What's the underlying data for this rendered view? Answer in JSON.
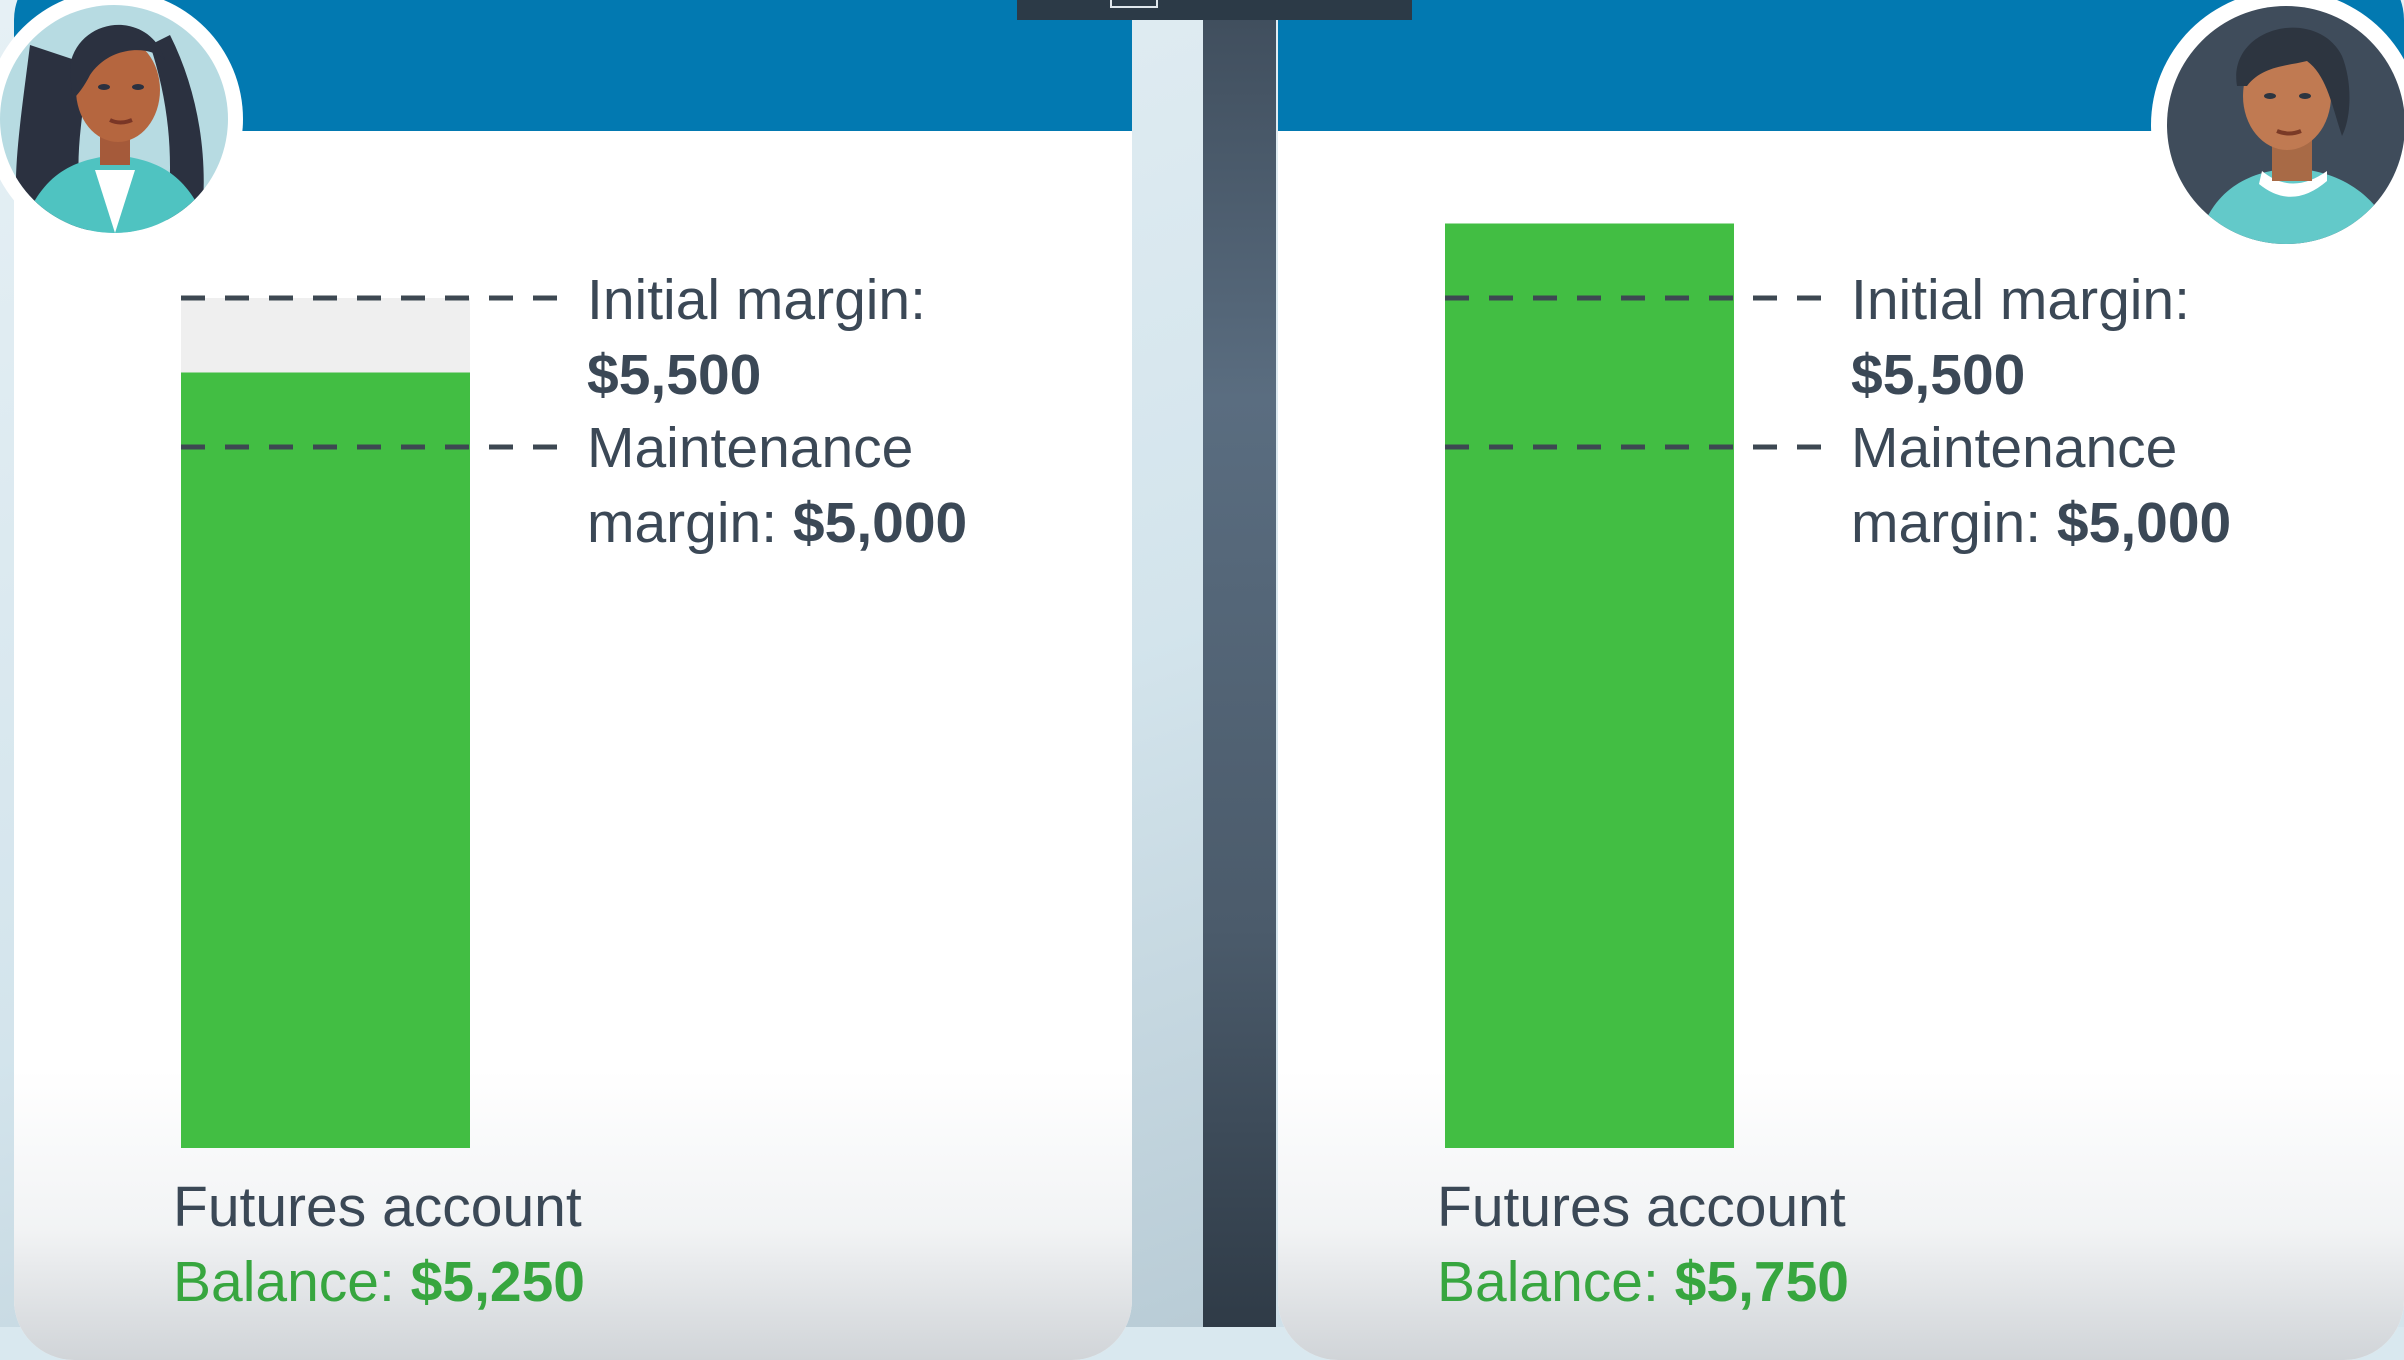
{
  "chart_data": [
    {
      "type": "bar",
      "categories": [
        "Futures account"
      ],
      "values": [
        5250
      ],
      "reference_lines": [
        {
          "label": "Initial margin:",
          "value": 5500,
          "value_text": "$5,500"
        },
        {
          "label_line1": "Maintenance",
          "label_line2": "margin:",
          "value": 5000,
          "value_text": "$5,000"
        }
      ],
      "footer": {
        "title": "Futures account",
        "balance_label": "Balance:",
        "balance_text": "$5,250"
      },
      "colors": {
        "bar": "#42be43",
        "bar_empty": "#efefef",
        "text": "#3b4856",
        "balance": "#37a63f"
      }
    },
    {
      "type": "bar",
      "categories": [
        "Futures account"
      ],
      "values": [
        5750
      ],
      "reference_lines": [
        {
          "label": "Initial margin:",
          "value": 5500,
          "value_text": "$5,500"
        },
        {
          "label_line1": "Maintenance",
          "label_line2": "margin:",
          "value": 5000,
          "value_text": "$5,000"
        }
      ],
      "footer": {
        "title": "Futures account",
        "balance_label": "Balance:",
        "balance_text": "$5,750"
      },
      "colors": {
        "bar": "#42be43",
        "bar_empty": "#efefef",
        "text": "#3b4856",
        "balance": "#37a63f"
      }
    }
  ],
  "avatars": [
    {
      "name": "woman-avatar-icon"
    },
    {
      "name": "man-avatar-icon"
    }
  ],
  "colors": {
    "header": "#0279b1",
    "divider": "#4b5b6b"
  }
}
